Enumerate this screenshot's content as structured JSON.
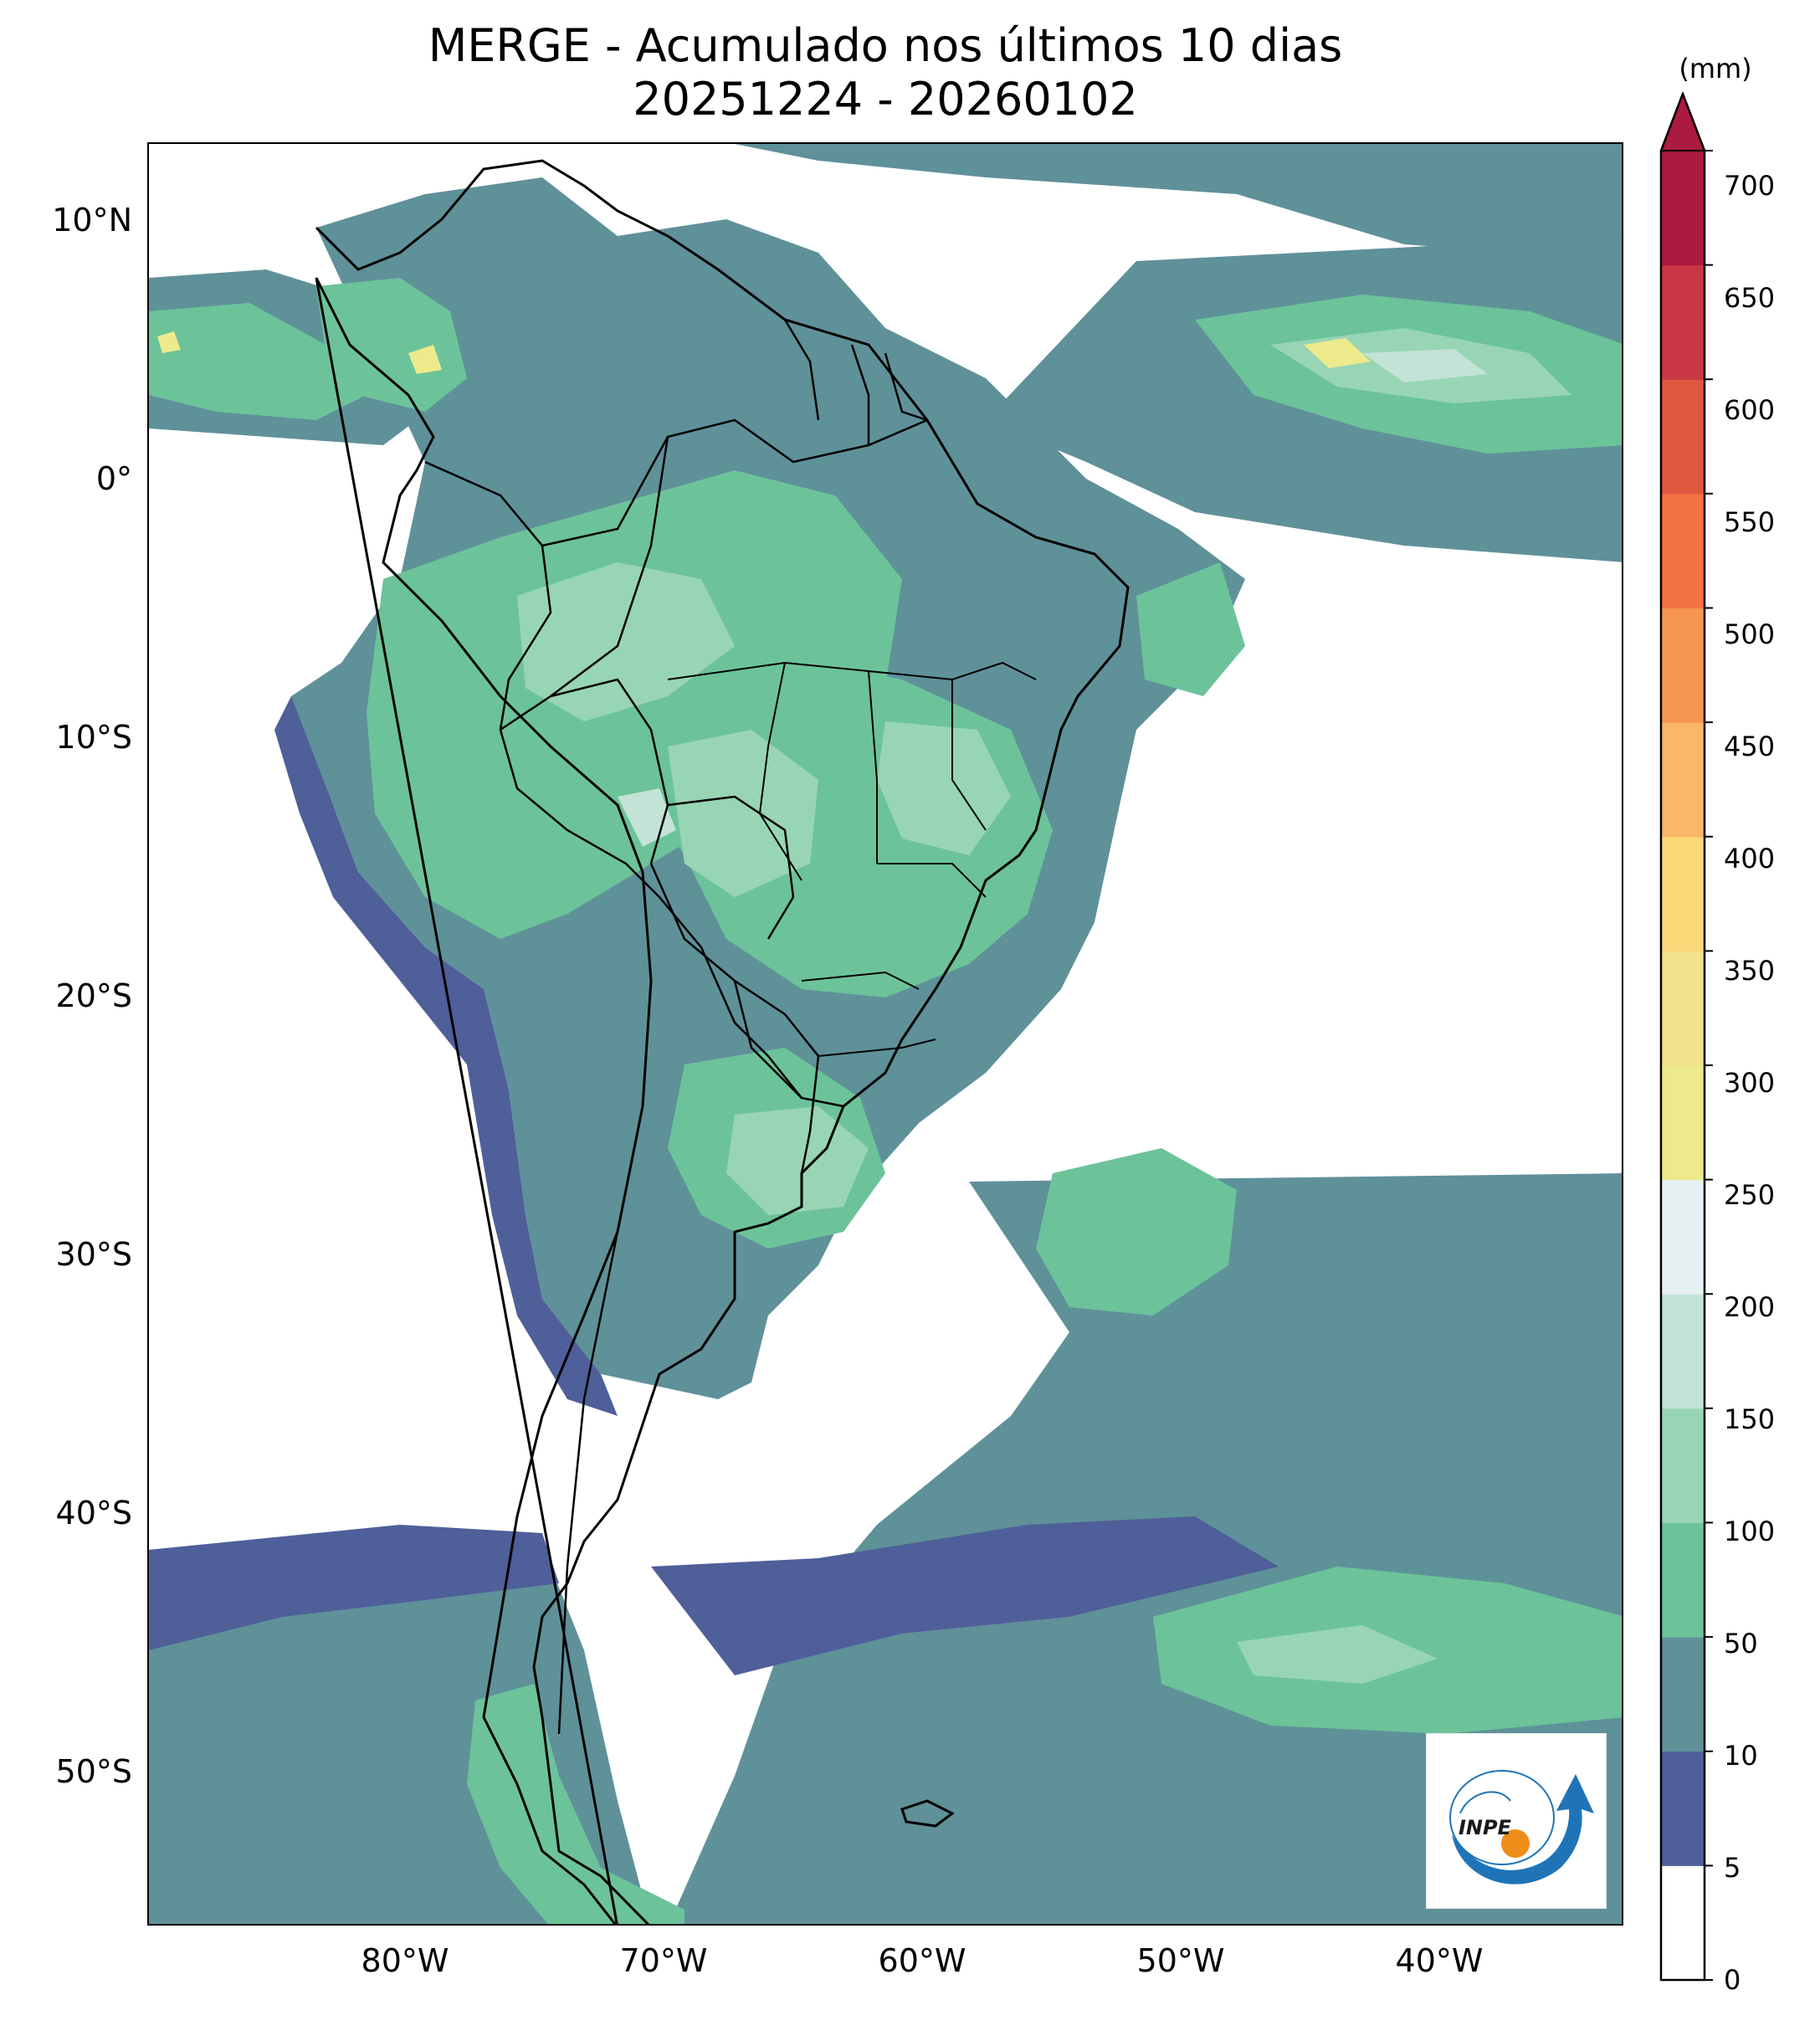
{
  "title": {
    "line1": "MERGE - Acumulado nos últimos 10 dias",
    "line2": "20251224 - 20260102"
  },
  "map": {
    "region": "América do Sul",
    "variable": "precipitação acumulada",
    "lat_range": [
      -56,
      13
    ],
    "lon_range": [
      -90,
      -32
    ],
    "lat_ticks": [
      {
        "value": 10,
        "label": "10°N"
      },
      {
        "value": 0,
        "label": "0°"
      },
      {
        "value": -10,
        "label": "10°S"
      },
      {
        "value": -20,
        "label": "20°S"
      },
      {
        "value": -30,
        "label": "30°S"
      },
      {
        "value": -40,
        "label": "40°S"
      },
      {
        "value": -50,
        "label": "50°S"
      }
    ],
    "lon_ticks": [
      {
        "value": -80,
        "label": "80°W"
      },
      {
        "value": -70,
        "label": "70°W"
      },
      {
        "value": -60,
        "label": "60°W"
      },
      {
        "value": -50,
        "label": "50°W"
      },
      {
        "value": -40,
        "label": "40°W"
      }
    ]
  },
  "colorbar": {
    "unit": "(mm)",
    "levels": [
      {
        "value": 0,
        "label": "0"
      },
      {
        "value": 5,
        "label": "5"
      },
      {
        "value": 10,
        "label": "10"
      },
      {
        "value": 50,
        "label": "50"
      },
      {
        "value": 100,
        "label": "100"
      },
      {
        "value": 150,
        "label": "150"
      },
      {
        "value": 200,
        "label": "200"
      },
      {
        "value": 250,
        "label": "250"
      },
      {
        "value": 300,
        "label": "300"
      },
      {
        "value": 350,
        "label": "350"
      },
      {
        "value": 400,
        "label": "400"
      },
      {
        "value": 450,
        "label": "450"
      },
      {
        "value": 500,
        "label": "500"
      },
      {
        "value": 550,
        "label": "550"
      },
      {
        "value": 600,
        "label": "600"
      },
      {
        "value": 650,
        "label": "650"
      },
      {
        "value": 700,
        "label": "700"
      }
    ],
    "colors": [
      "#ffffff",
      "#4f5f9a",
      "#5f9199",
      "#6cc39a",
      "#98d5b5",
      "#c2e3d6",
      "#e6f1f3",
      "#edea8c",
      "#f3e08a",
      "#fbd978",
      "#f9b76a",
      "#f59650",
      "#f27342",
      "#e0573f",
      "#c93744",
      "#ab1a40"
    ],
    "extend_color": "#ab1a40"
  },
  "logo": {
    "text": "INPE"
  }
}
